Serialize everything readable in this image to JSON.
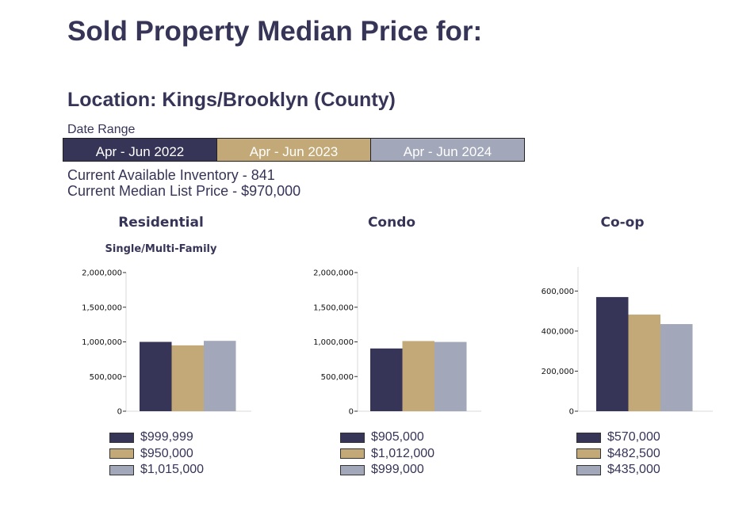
{
  "header": {
    "title": "Sold Property Median Price for:",
    "location": "Location: Kings/Brooklyn (County)"
  },
  "date_range": {
    "label": "Date Range",
    "periods": [
      {
        "label": "Apr - Jun 2022",
        "color": "#363457"
      },
      {
        "label": "Apr - Jun 2023",
        "color": "#C2A977"
      },
      {
        "label": "Apr - Jun 2024",
        "color": "#A3A7BA"
      }
    ]
  },
  "info": {
    "inventory": "Current Available Inventory - 841",
    "median_list_price": "Current Median List Price - $970,000"
  },
  "chart_data": [
    {
      "type": "bar",
      "title": "Residential",
      "subtitle": "Single/Multi-Family",
      "categories": [
        "Apr - Jun 2022",
        "Apr - Jun 2023",
        "Apr - Jun 2024"
      ],
      "values": [
        999999,
        950000,
        1015000
      ],
      "value_labels": [
        "$999,999",
        "$950,000",
        "$1,015,000"
      ],
      "ylim": [
        0,
        2000000
      ],
      "yticks": [
        0,
        500000,
        1000000,
        1500000,
        2000000
      ],
      "ytick_labels": [
        "0",
        "500,000",
        "1,000,000",
        "1,500,000",
        "2,000,000"
      ],
      "colors": [
        "#363457",
        "#C2A977",
        "#A3A7BA"
      ],
      "legend": "bottom",
      "grid": false
    },
    {
      "type": "bar",
      "title": "Condo",
      "subtitle": "",
      "categories": [
        "Apr - Jun 2022",
        "Apr - Jun 2023",
        "Apr - Jun 2024"
      ],
      "values": [
        905000,
        1012000,
        999000
      ],
      "value_labels": [
        "$905,000",
        "$1,012,000",
        "$999,000"
      ],
      "ylim": [
        0,
        2000000
      ],
      "yticks": [
        0,
        500000,
        1000000,
        1500000,
        2000000
      ],
      "ytick_labels": [
        "0",
        "500,000",
        "1,000,000",
        "1,500,000",
        "2,000,000"
      ],
      "colors": [
        "#363457",
        "#C2A977",
        "#A3A7BA"
      ],
      "legend": "bottom",
      "grid": false
    },
    {
      "type": "bar",
      "title": "Co-op",
      "subtitle": "",
      "categories": [
        "Apr - Jun 2022",
        "Apr - Jun 2023",
        "Apr - Jun 2024"
      ],
      "values": [
        570000,
        482500,
        435000
      ],
      "value_labels": [
        "$570,000",
        "$482,500",
        "$435,000"
      ],
      "ylim": [
        0,
        720000
      ],
      "yticks": [
        0,
        200000,
        400000,
        600000
      ],
      "ytick_labels": [
        "0",
        "200,000",
        "400,000",
        "600,000"
      ],
      "colors": [
        "#363457",
        "#C2A977",
        "#A3A7BA"
      ],
      "legend": "bottom",
      "grid": false
    }
  ]
}
